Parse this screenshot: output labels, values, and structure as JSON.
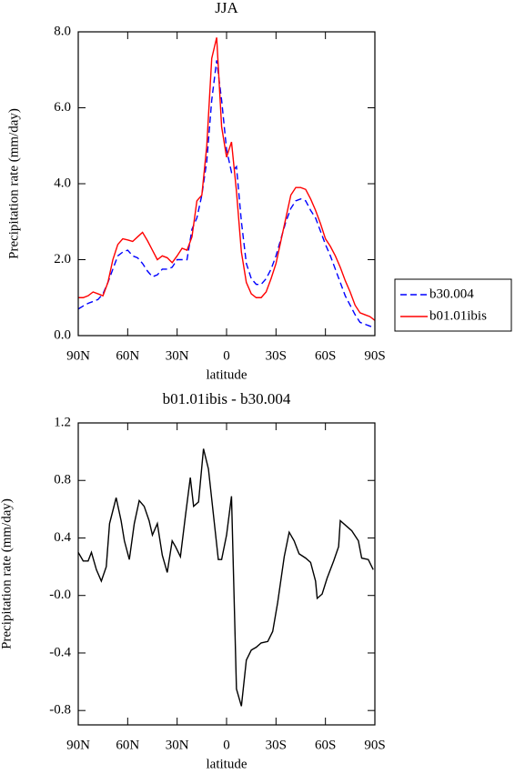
{
  "chart_data": [
    {
      "type": "line",
      "title": "JJA",
      "xlabel": "latitude",
      "ylabel": "Precipitation rate (mm/day)",
      "x": [
        90,
        87,
        84,
        81,
        78,
        75,
        72,
        69,
        66,
        63,
        60,
        57,
        54,
        51,
        48,
        45,
        42,
        39,
        36,
        33,
        30,
        27,
        24,
        21,
        18,
        15,
        12,
        9,
        6,
        3,
        0,
        -3,
        -6,
        -9,
        -12,
        -15,
        -18,
        -21,
        -24,
        -27,
        -30,
        -33,
        -36,
        -39,
        -42,
        -45,
        -48,
        -51,
        -54,
        -57,
        -60,
        -63,
        -66,
        -69,
        -72,
        -75,
        -78,
        -81,
        -84,
        -87,
        -90
      ],
      "series": [
        {
          "name": "b30.004",
          "color": "#0000ff",
          "linestyle": "dashed",
          "values": [
            0.7,
            0.78,
            0.85,
            0.9,
            0.95,
            1.1,
            1.4,
            1.75,
            2.1,
            2.2,
            2.25,
            2.1,
            2.05,
            1.9,
            1.7,
            1.55,
            1.6,
            1.75,
            1.75,
            1.8,
            2.0,
            2.0,
            2.0,
            2.8,
            3.1,
            3.7,
            4.6,
            6.2,
            7.25,
            6.2,
            4.9,
            4.3,
            4.45,
            3.0,
            1.9,
            1.5,
            1.35,
            1.35,
            1.5,
            1.75,
            2.1,
            2.55,
            3.0,
            3.35,
            3.55,
            3.6,
            3.55,
            3.3,
            3.1,
            2.75,
            2.4,
            2.1,
            1.75,
            1.4,
            1.05,
            0.8,
            0.55,
            0.35,
            0.3,
            0.25,
            0.2
          ]
        },
        {
          "name": "b01.01ibis",
          "color": "#ff0000",
          "linestyle": "solid",
          "values": [
            1.0,
            1.0,
            1.05,
            1.15,
            1.1,
            1.05,
            1.4,
            2.0,
            2.4,
            2.55,
            2.52,
            2.48,
            2.6,
            2.72,
            2.5,
            2.25,
            2.0,
            2.1,
            2.05,
            1.92,
            2.1,
            2.3,
            2.25,
            2.6,
            3.55,
            3.7,
            5.0,
            7.3,
            7.85,
            5.5,
            4.7,
            5.1,
            3.8,
            2.2,
            1.4,
            1.1,
            1.0,
            1.0,
            1.15,
            1.5,
            1.9,
            2.5,
            3.1,
            3.7,
            3.9,
            3.9,
            3.85,
            3.6,
            3.3,
            2.95,
            2.55,
            2.35,
            2.1,
            1.8,
            1.45,
            1.15,
            0.8,
            0.6,
            0.55,
            0.5,
            0.4
          ]
        }
      ],
      "xlim": [
        90,
        -90
      ],
      "xticks": [
        {
          "value": 90,
          "label": "90N"
        },
        {
          "value": 60,
          "label": "60N"
        },
        {
          "value": 30,
          "label": "30N"
        },
        0,
        {
          "value": -30,
          "label": "30S"
        },
        {
          "value": -60,
          "label": "60S"
        },
        {
          "value": -90,
          "label": "90S"
        }
      ],
      "ylim": [
        0,
        8
      ],
      "yticks": [
        {
          "value": 0,
          "label": "0.0"
        },
        {
          "value": 2,
          "label": "2.0"
        },
        {
          "value": 4,
          "label": "4.0"
        },
        {
          "value": 6,
          "label": "6.0"
        },
        {
          "value": 8,
          "label": "8.0"
        }
      ],
      "legend": "right",
      "grid": false
    },
    {
      "type": "line",
      "title": "b01.01ibis - b30.004",
      "xlabel": "latitude",
      "ylabel": "Precipitation rate (mm/day)",
      "x": [
        90,
        87,
        84,
        82,
        79,
        76,
        73,
        71,
        67,
        64,
        62,
        59,
        56,
        53,
        50,
        47,
        45,
        42,
        39,
        36,
        33,
        31,
        28,
        25,
        22,
        20,
        17,
        14,
        11,
        5,
        3,
        0,
        -3,
        -6,
        -9,
        -12,
        -15,
        -18,
        -21,
        -25,
        -28,
        -31,
        -35,
        -38,
        -41,
        -44,
        -48,
        -51,
        -54,
        -55,
        -58,
        -61,
        -65,
        -68,
        -69,
        -73,
        -76,
        -80,
        -82,
        -86,
        -89
      ],
      "values": [
        0.3,
        0.24,
        0.24,
        0.3,
        0.18,
        0.1,
        0.2,
        0.5,
        0.68,
        0.52,
        0.38,
        0.25,
        0.5,
        0.66,
        0.62,
        0.52,
        0.42,
        0.5,
        0.28,
        0.16,
        0.38,
        0.34,
        0.27,
        0.55,
        0.82,
        0.62,
        0.65,
        1.02,
        0.88,
        0.25,
        0.25,
        0.42,
        0.69,
        -0.65,
        -0.77,
        -0.45,
        -0.38,
        -0.36,
        -0.33,
        -0.32,
        -0.25,
        -0.05,
        0.27,
        0.44,
        0.38,
        0.29,
        0.26,
        0.23,
        0.1,
        -0.02,
        0.01,
        0.12,
        0.24,
        0.34,
        0.52,
        0.48,
        0.45,
        0.38,
        0.26,
        0.25,
        0.18
      ],
      "color": "#000000",
      "xlim": [
        90,
        -90
      ],
      "xticks": [
        {
          "value": 90,
          "label": "90N"
        },
        {
          "value": 60,
          "label": "60N"
        },
        {
          "value": 30,
          "label": "30N"
        },
        0,
        {
          "value": -30,
          "label": "30S"
        },
        {
          "value": -60,
          "label": "60S"
        },
        {
          "value": -90,
          "label": "90S"
        }
      ],
      "ylim": [
        -0.9,
        1.2
      ],
      "yticks": [
        -0.8,
        -0.4,
        {
          "value": 0,
          "label": "-0.0"
        },
        0.4,
        0.8,
        1.2
      ],
      "grid": false
    }
  ]
}
